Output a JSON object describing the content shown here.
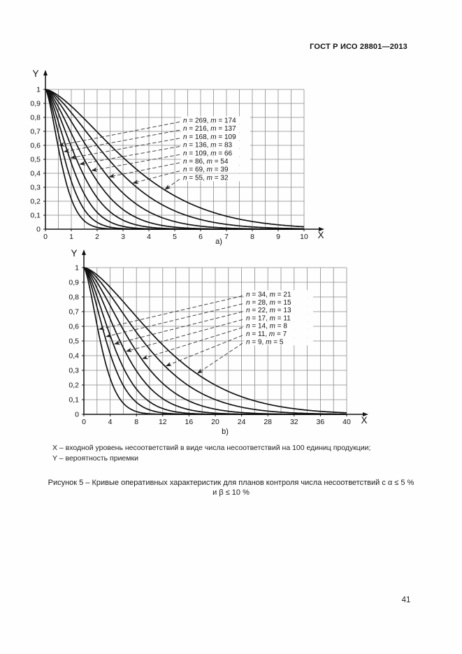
{
  "header": {
    "title": "ГОСТ Р ИСО 28801—2013"
  },
  "notes": {
    "x_note": "X – входной уровень несоответствий в виде числа несоответствий на 100 единиц продукции;",
    "y_note": "Y – вероятность приемки"
  },
  "caption": {
    "line1": "Рисунок 5 – Кривые оперативных характеристик для планов контроля числа несоответствий с α ≤ 5 %",
    "line2": "и β ≤ 10 %"
  },
  "page_number": "41",
  "chart_data": [
    {
      "type": "line",
      "id": "a",
      "sublabel": "a)",
      "xlabel": "X",
      "ylabel": "Y",
      "xlim": [
        0,
        10
      ],
      "ylim": [
        0,
        1
      ],
      "grid": true,
      "x_grid_step": 0.5,
      "y_grid_step": 0.1,
      "x_tick_labels": [
        "0",
        "1",
        "2",
        "3",
        "4",
        "5",
        "6",
        "7",
        "8",
        "9",
        "10"
      ],
      "y_tick_labels": [
        "1",
        "0,9",
        "0,8",
        "0,7",
        "0,6",
        "0,5",
        "0,4",
        "0,3",
        "0,2",
        "0,1",
        "0"
      ],
      "legend_position": "inside-right",
      "curve_model": "y = exp(-ln(2)·(x / x_at_half_acceptance)^1.5)",
      "series": [
        {
          "name": "n = 269, m = 174",
          "n": 269,
          "m": 174,
          "x_at_half_acceptance": 0.59
        },
        {
          "name": "n = 216, m = 137",
          "n": 216,
          "m": 137,
          "x_at_half_acceptance": 0.75
        },
        {
          "name": "n = 168, m = 109",
          "n": 168,
          "m": 109,
          "x_at_half_acceptance": 0.95
        },
        {
          "name": "n = 136, m = 83",
          "n": 136,
          "m": 83,
          "x_at_half_acceptance": 1.2
        },
        {
          "name": "n = 109, m = 66",
          "n": 109,
          "m": 66,
          "x_at_half_acceptance": 1.5
        },
        {
          "name": "n = 86, m = 54",
          "n": 86,
          "m": 54,
          "x_at_half_acceptance": 1.92
        },
        {
          "name": "n = 69, m = 39",
          "n": 69,
          "m": 39,
          "x_at_half_acceptance": 2.44
        },
        {
          "name": "n = 55, m = 32",
          "n": 55,
          "m": 32,
          "x_at_half_acceptance": 3.08
        }
      ]
    },
    {
      "type": "line",
      "id": "b",
      "sublabel": "b)",
      "xlabel": "X",
      "ylabel": "Y",
      "xlim": [
        0,
        40
      ],
      "ylim": [
        0,
        1
      ],
      "grid": true,
      "x_grid_step": 2,
      "y_grid_step": 0.1,
      "x_tick_labels": [
        "0",
        "4",
        "8",
        "12",
        "16",
        "20",
        "24",
        "28",
        "32",
        "36",
        "40"
      ],
      "y_tick_labels": [
        "1",
        "0,9",
        "0,8",
        "0,7",
        "0,6",
        "0,5",
        "0,4",
        "0,3",
        "0,2",
        "0,1",
        "0"
      ],
      "legend_position": "inside-right",
      "curve_model": "y = exp(-ln(2)·(x / x_at_half_acceptance)^1.5)",
      "series": [
        {
          "name": "n = 34, m = 21",
          "n": 34,
          "m": 21,
          "x_at_half_acceptance": 2.5
        },
        {
          "name": "n = 28, m = 15",
          "n": 28,
          "m": 15,
          "x_at_half_acceptance": 3.4
        },
        {
          "name": "n = 22, m = 13",
          "n": 22,
          "m": 13,
          "x_at_half_acceptance": 4.3
        },
        {
          "name": "n = 17, m = 11",
          "n": 17,
          "m": 11,
          "x_at_half_acceptance": 5.5
        },
        {
          "name": "n = 14, m = 8",
          "n": 14,
          "m": 8,
          "x_at_half_acceptance": 7.0
        },
        {
          "name": "n = 11, m = 7",
          "n": 11,
          "m": 7,
          "x_at_half_acceptance": 9.0
        },
        {
          "name": "n = 9, m = 5",
          "n": 9,
          "m": 5,
          "x_at_half_acceptance": 11.4
        }
      ]
    }
  ]
}
